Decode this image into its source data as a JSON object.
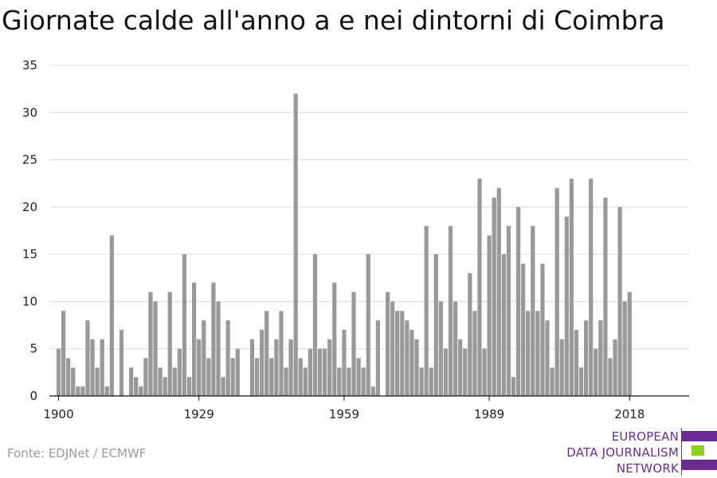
{
  "title": "Giornate calde all'anno a e nei dintorni di Coimbra",
  "source": "Fonte: EDJNet / ECMWF",
  "logo": {
    "lines": [
      "EUROPEAN",
      "DATA JOURNALISM",
      "NETWORK"
    ],
    "colors": {
      "purple": "#6b2c91",
      "green": "#8bd21c"
    }
  },
  "chart_data": {
    "type": "bar",
    "title": "Giornate calde all'anno a e nei dintorni di Coimbra",
    "xlabel": "",
    "ylabel": "",
    "ylim": [
      0,
      35
    ],
    "yticks": [
      0,
      5,
      10,
      15,
      20,
      25,
      30,
      35
    ],
    "xticks": [
      1900,
      1929,
      1959,
      1989,
      2018
    ],
    "xtick_labels": [
      "1900",
      "1929",
      "1959",
      "1989",
      "2018"
    ],
    "bar_color": "#999999",
    "grid": true,
    "x": [
      1900,
      1901,
      1902,
      1903,
      1904,
      1905,
      1906,
      1907,
      1908,
      1909,
      1910,
      1911,
      1912,
      1913,
      1914,
      1915,
      1916,
      1917,
      1918,
      1919,
      1920,
      1921,
      1922,
      1923,
      1924,
      1925,
      1926,
      1927,
      1928,
      1929,
      1930,
      1931,
      1932,
      1933,
      1934,
      1935,
      1936,
      1937,
      1938,
      1939,
      1940,
      1941,
      1942,
      1943,
      1944,
      1945,
      1946,
      1947,
      1948,
      1949,
      1950,
      1951,
      1952,
      1953,
      1954,
      1955,
      1956,
      1957,
      1958,
      1959,
      1960,
      1961,
      1962,
      1963,
      1964,
      1965,
      1966,
      1967,
      1968,
      1969,
      1970,
      1971,
      1972,
      1973,
      1974,
      1975,
      1976,
      1977,
      1978,
      1979,
      1980,
      1981,
      1982,
      1983,
      1984,
      1985,
      1986,
      1987,
      1988,
      1989,
      1990,
      1991,
      1992,
      1993,
      1994,
      1995,
      1996,
      1997,
      1998,
      1999,
      2000,
      2001,
      2002,
      2003,
      2004,
      2005,
      2006,
      2007,
      2008,
      2009,
      2010,
      2011,
      2012,
      2013,
      2014,
      2015,
      2016,
      2017,
      2018,
      2019
    ],
    "values": [
      5,
      9,
      4,
      3,
      1,
      1,
      8,
      6,
      3,
      6,
      1,
      17,
      0,
      7,
      0,
      3,
      2,
      1,
      4,
      11,
      10,
      3,
      2,
      11,
      3,
      5,
      15,
      2,
      12,
      6,
      8,
      4,
      12,
      10,
      2,
      8,
      4,
      5,
      0,
      0,
      6,
      4,
      7,
      9,
      4,
      6,
      9,
      3,
      6,
      32,
      4,
      3,
      5,
      15,
      5,
      5,
      6,
      12,
      3,
      7,
      3,
      11,
      4,
      3,
      15,
      1,
      8,
      0,
      11,
      10,
      9,
      9,
      8,
      7,
      6,
      3,
      18,
      3,
      15,
      10,
      5,
      18,
      10,
      6,
      5,
      13,
      9,
      23,
      5,
      17,
      21,
      22,
      15,
      18,
      2,
      20,
      14,
      9,
      18,
      9,
      14,
      8,
      3,
      22,
      6,
      19,
      23,
      7,
      3,
      8,
      23,
      5,
      8,
      21,
      4,
      6,
      20,
      10,
      11,
      0
    ]
  }
}
